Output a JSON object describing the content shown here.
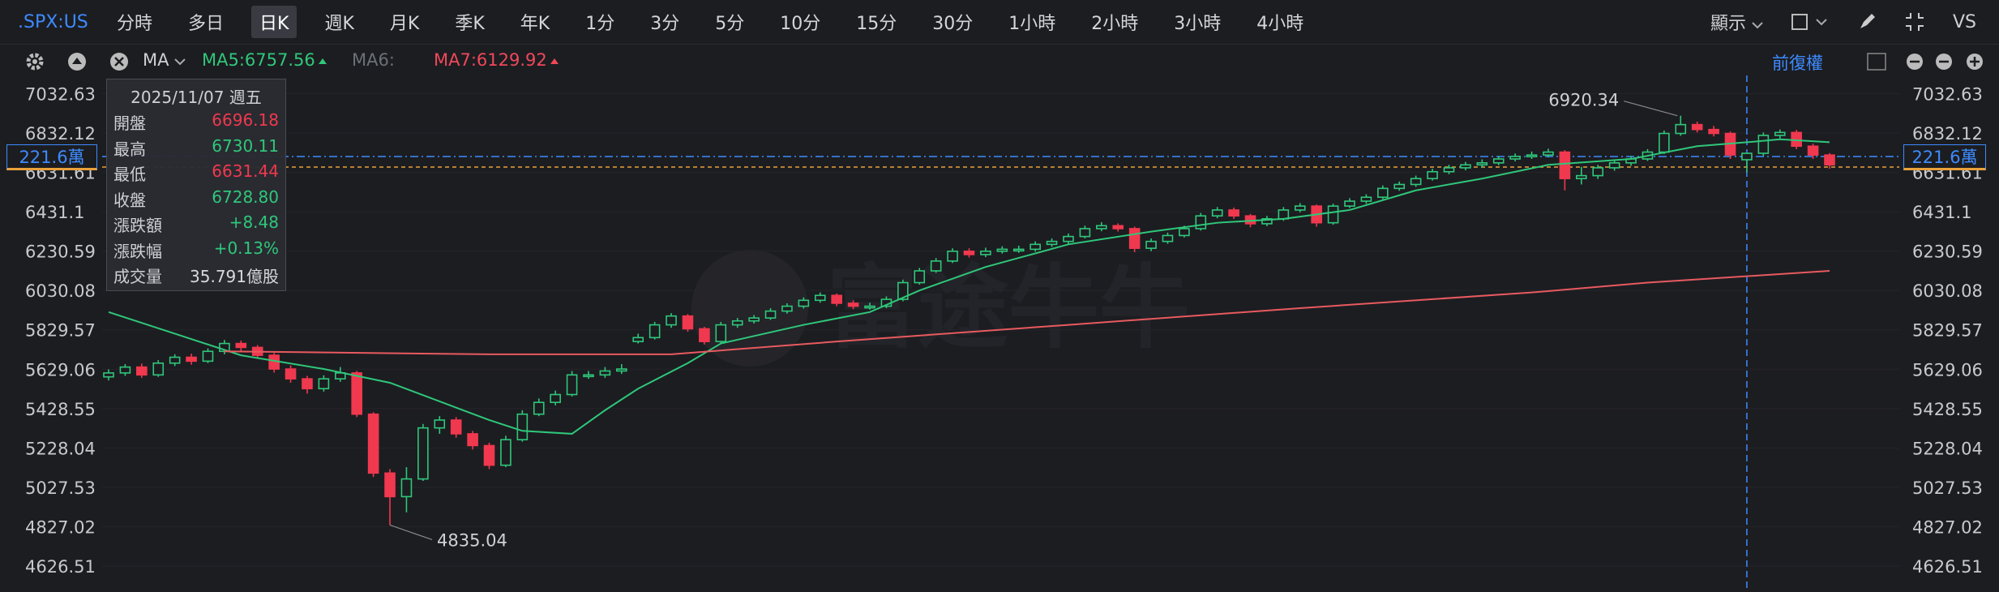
{
  "toolbar": {
    "symbol": ".SPX:US",
    "periods": [
      "分時",
      "多日",
      "日K",
      "週K",
      "月K",
      "季K",
      "年K",
      "1分",
      "3分",
      "5分",
      "10分",
      "15分",
      "30分",
      "1小時",
      "2小時",
      "3小時",
      "4小時"
    ],
    "selected": "日K",
    "display": "顯示",
    "compare": "VS"
  },
  "indicator_bar": {
    "name": "MA",
    "labels": [
      {
        "text": "MA5:6757.56",
        "color": "#2fc77a",
        "arrow": true
      },
      {
        "text": "MA6:",
        "color": "#6b7078",
        "arrow": false
      },
      {
        "text": "MA7:6129.92",
        "color": "#f0485a",
        "arrow": true
      }
    ],
    "adjust": "前復權"
  },
  "tooltip": {
    "date": "2025/11/07 週五",
    "rows": [
      {
        "label": "開盤",
        "value": "6696.18",
        "color": "#f0384e"
      },
      {
        "label": "最高",
        "value": "6730.11",
        "color": "#2fc77a"
      },
      {
        "label": "最低",
        "value": "6631.44",
        "color": "#f0384e"
      },
      {
        "label": "收盤",
        "value": "6728.80",
        "color": "#2fc77a"
      },
      {
        "label": "漲跌額",
        "value": "+8.48",
        "color": "#2fc77a"
      },
      {
        "label": "漲跌幅",
        "value": "+0.13%",
        "color": "#2fc77a"
      },
      {
        "label": "成交量",
        "value": "35.791億股",
        "color": "#d8d8dc"
      }
    ]
  },
  "crosshair_label": "221.6萬",
  "watermark": "富途牛牛",
  "chart_data": {
    "type": "candlestick",
    "up_color": "#2fc77a",
    "down_color": "#f0384e",
    "grid": true,
    "ylim": [
      4552,
      7109
    ],
    "yticks": [
      7032.63,
      6832.12,
      6631.61,
      6431.1,
      6230.59,
      6030.08,
      5829.57,
      5629.06,
      5428.55,
      5228.04,
      5027.53,
      4827.02,
      4626.51
    ],
    "open": [
      5590,
      5610,
      5640,
      5600,
      5660,
      5690,
      5670,
      5720,
      5760,
      5740,
      5700,
      5630,
      5580,
      5530,
      5580,
      5610,
      5400,
      5100,
      4980,
      5070,
      5330,
      5370,
      5300,
      5240,
      5140,
      5270,
      5400,
      5460,
      5500,
      5600,
      5600,
      5620,
      5770,
      5790,
      5855,
      5900,
      5835,
      5770,
      5855,
      5875,
      5890,
      5925,
      5950,
      5980,
      6005,
      5965,
      5950,
      5950,
      5985,
      6070,
      6130,
      6180,
      6230,
      6213,
      6230,
      6240,
      6240,
      6265,
      6280,
      6305,
      6345,
      6360,
      6345,
      6245,
      6280,
      6310,
      6345,
      6410,
      6440,
      6410,
      6370,
      6395,
      6440,
      6460,
      6375,
      6460,
      6485,
      6505,
      6550,
      6570,
      6600,
      6635,
      6655,
      6670,
      6680,
      6700,
      6713,
      6720,
      6735,
      6600,
      6615,
      6655,
      6680,
      6700,
      6735,
      6830,
      6875,
      6850,
      6830,
      6696.18,
      6728.8,
      6820,
      6835,
      6765,
      6720
    ],
    "high": [
      5628,
      5655,
      5658,
      5675,
      5705,
      5708,
      5735,
      5778,
      5775,
      5752,
      5712,
      5648,
      5595,
      5598,
      5640,
      5620,
      5410,
      5120,
      5130,
      5350,
      5390,
      5385,
      5315,
      5255,
      5290,
      5420,
      5480,
      5520,
      5620,
      5620,
      5640,
      5655,
      5810,
      5870,
      5915,
      5910,
      5845,
      5870,
      5890,
      5905,
      5940,
      5965,
      5995,
      6020,
      6015,
      5980,
      5968,
      6000,
      6085,
      6145,
      6195,
      6245,
      6245,
      6248,
      6255,
      6258,
      6280,
      6295,
      6320,
      6360,
      6378,
      6372,
      6355,
      6295,
      6325,
      6360,
      6425,
      6455,
      6452,
      6420,
      6410,
      6455,
      6475,
      6468,
      6472,
      6500,
      6520,
      6565,
      6585,
      6615,
      6650,
      6670,
      6685,
      6698,
      6715,
      6728,
      6738,
      6752,
      6745,
      6660,
      6670,
      6695,
      6715,
      6750,
      6845,
      6920.34,
      6890,
      6868,
      6840,
      6730.11,
      6835,
      6850,
      6848,
      6778,
      6730
    ],
    "low": [
      5572,
      5595,
      5585,
      5590,
      5645,
      5652,
      5660,
      5705,
      5722,
      5685,
      5612,
      5560,
      5505,
      5515,
      5565,
      5385,
      5080,
      4835.04,
      4900,
      5060,
      5300,
      5280,
      5220,
      5120,
      5130,
      5260,
      5390,
      5445,
      5490,
      5580,
      5585,
      5605,
      5760,
      5780,
      5840,
      5820,
      5755,
      5760,
      5840,
      5862,
      5880,
      5912,
      5938,
      5968,
      5950,
      5935,
      5932,
      5940,
      5975,
      6060,
      6120,
      6170,
      6198,
      6200,
      6218,
      6222,
      6228,
      6252,
      6268,
      6295,
      6332,
      6330,
      6225,
      6230,
      6268,
      6300,
      6335,
      6398,
      6395,
      6352,
      6358,
      6385,
      6428,
      6355,
      6365,
      6450,
      6472,
      6495,
      6538,
      6558,
      6590,
      6622,
      6642,
      6655,
      6668,
      6688,
      6700,
      6708,
      6540,
      6570,
      6598,
      6640,
      6665,
      6690,
      6725,
      6818,
      6835,
      6815,
      6700,
      6631.44,
      6715,
      6805,
      6750,
      6700,
      6650
    ],
    "close": [
      5610,
      5640,
      5600,
      5660,
      5690,
      5670,
      5720,
      5760,
      5740,
      5700,
      5630,
      5580,
      5530,
      5580,
      5610,
      5400,
      5100,
      4980,
      5070,
      5330,
      5370,
      5300,
      5240,
      5140,
      5270,
      5400,
      5460,
      5500,
      5600,
      5600,
      5620,
      5630,
      5790,
      5855,
      5900,
      5835,
      5770,
      5855,
      5875,
      5890,
      5925,
      5950,
      5980,
      6005,
      5965,
      5950,
      5950,
      5985,
      6070,
      6130,
      6180,
      6230,
      6213,
      6230,
      6240,
      6240,
      6265,
      6280,
      6305,
      6345,
      6360,
      6345,
      6245,
      6280,
      6310,
      6345,
      6410,
      6440,
      6410,
      6370,
      6395,
      6440,
      6460,
      6375,
      6460,
      6485,
      6505,
      6550,
      6570,
      6600,
      6635,
      6655,
      6670,
      6680,
      6700,
      6713,
      6720,
      6735,
      6600,
      6615,
      6655,
      6680,
      6700,
      6735,
      6830,
      6875,
      6850,
      6830,
      6720.32,
      6728.8,
      6820,
      6835,
      6765,
      6720,
      6670
    ],
    "ma": [
      {
        "name": "MA5",
        "color": "#2fc77a",
        "x": [
          0,
          4,
          8,
          13,
          17,
          20,
          23,
          25,
          28,
          30,
          32,
          35,
          37,
          42,
          46,
          49,
          53,
          58,
          63,
          67,
          71,
          75,
          79,
          83,
          87,
          92,
          96,
          99,
          101,
          104
        ],
        "values": [
          5920,
          5810,
          5700,
          5630,
          5560,
          5465,
          5370,
          5315,
          5300,
          5420,
          5530,
          5660,
          5760,
          5855,
          5920,
          6030,
          6150,
          6265,
          6330,
          6375,
          6395,
          6440,
          6540,
          6600,
          6670,
          6700,
          6765,
          6785,
          6800,
          6785
        ]
      },
      {
        "name": "MA7",
        "color": "#e85a5f",
        "x": [
          7,
          23,
          34,
          44,
          58,
          72,
          86,
          93,
          104
        ],
        "values": [
          5720,
          5705,
          5705,
          5770,
          5855,
          5940,
          6020,
          6070,
          6130
        ]
      }
    ]
  }
}
